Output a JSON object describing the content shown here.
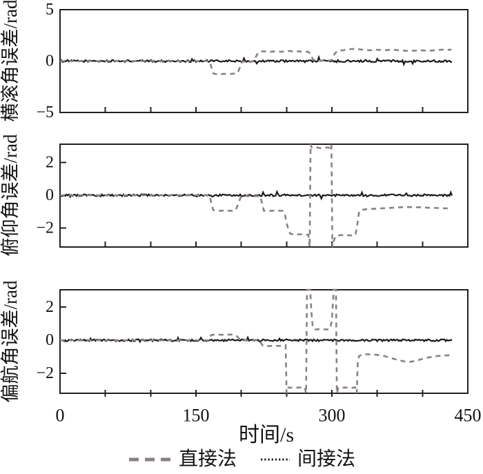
{
  "chart_data": {
    "type": "line",
    "title": "",
    "x_axis": {
      "label": "时间/s",
      "min": 0,
      "max": 450,
      "major_ticks": [
        0,
        150,
        300,
        450
      ],
      "tick_labels": [
        "0",
        "150",
        "300",
        "450"
      ],
      "minor_tick_step": 50
    },
    "legend": {
      "position": "bottom",
      "items": [
        {
          "label": "直接法",
          "line_style": "dashed",
          "color": "#8b8083"
        },
        {
          "label": "间接法",
          "line_style": "dotted",
          "color": "#2a2627"
        }
      ]
    },
    "panels": [
      {
        "name": "roll-angle-error",
        "ylabel": "横滚角误差/rad",
        "ylim": [
          -5,
          5
        ],
        "ytick_values": [
          5,
          0,
          -5
        ],
        "ytick_labels": [
          "5",
          "0",
          "−5"
        ],
        "series": {
          "direct": {
            "legend": "直接法",
            "points": [
              [
                0,
                0
              ],
              [
                165,
                0
              ],
              [
                167,
                -0.6
              ],
              [
                169,
                -1.2
              ],
              [
                174,
                -1.3
              ],
              [
                180,
                -1.25
              ],
              [
                190,
                -1.25
              ],
              [
                196,
                -1.15
              ],
              [
                199,
                -0.5
              ],
              [
                201,
                -0.05
              ],
              [
                214,
                -0.05
              ],
              [
                216,
                0.4
              ],
              [
                219,
                0.85
              ],
              [
                224,
                0.95
              ],
              [
                232,
                0.9
              ],
              [
                238,
                0.95
              ],
              [
                244,
                0.9
              ],
              [
                250,
                1.0
              ],
              [
                256,
                0.95
              ],
              [
                262,
                0.95
              ],
              [
                268,
                0.9
              ],
              [
                274,
                0.9
              ],
              [
                277,
                0.6
              ],
              [
                279,
                0.15
              ],
              [
                283,
                0.05
              ],
              [
                297,
                0.05
              ],
              [
                300,
                0.1
              ],
              [
                303,
                0.7
              ],
              [
                306,
                1.0
              ],
              [
                312,
                1.05
              ],
              [
                318,
                1.15
              ],
              [
                326,
                1.2
              ],
              [
                334,
                1.1
              ],
              [
                342,
                1.05
              ],
              [
                350,
                1.1
              ],
              [
                358,
                1.05
              ],
              [
                366,
                1.1
              ],
              [
                374,
                1.05
              ],
              [
                382,
                1.0
              ],
              [
                390,
                1.0
              ],
              [
                398,
                1.05
              ],
              [
                406,
                1.0
              ],
              [
                414,
                1.05
              ],
              [
                420,
                1.1
              ],
              [
                426,
                1.1
              ],
              [
                432,
                1.1
              ]
            ]
          },
          "indirect": {
            "legend": "间接法",
            "baseline": 0,
            "noise_amplitude": 0.1,
            "t_range": [
              0,
              433
            ]
          }
        }
      },
      {
        "name": "pitch-angle-error",
        "ylabel": "俯仰角误差/rad",
        "ylim": [
          -3.16,
          3.12
        ],
        "ytick_values": [
          2,
          0,
          -2
        ],
        "ytick_labels": [
          "2",
          "0",
          "−2"
        ],
        "series": {
          "direct": {
            "legend": "直接法",
            "points": [
              [
                0,
                0
              ],
              [
                165,
                0
              ],
              [
                167,
                -0.5
              ],
              [
                169,
                -0.9
              ],
              [
                174,
                -0.95
              ],
              [
                182,
                -0.93
              ],
              [
                190,
                -0.95
              ],
              [
                194,
                -0.9
              ],
              [
                197,
                -0.45
              ],
              [
                200,
                -0.05
              ],
              [
                221,
                -0.05
              ],
              [
                223,
                -0.5
              ],
              [
                225,
                -0.95
              ],
              [
                232,
                -0.95
              ],
              [
                240,
                -0.93
              ],
              [
                246,
                -0.95
              ],
              [
                248,
                -1.15
              ],
              [
                251,
                -1.9
              ],
              [
                254,
                -2.35
              ],
              [
                258,
                -2.4
              ],
              [
                266,
                -2.38
              ],
              [
                272,
                -2.4
              ],
              [
                274,
                -2.42
              ],
              [
                275.5,
                -3.16
              ],
              [
                276.5,
                3.12
              ],
              [
                278,
                2.9
              ],
              [
                283,
                2.92
              ],
              [
                288,
                2.88
              ],
              [
                293,
                2.92
              ],
              [
                298,
                2.9
              ],
              [
                299.5,
                3.12
              ],
              [
                300.5,
                -3.16
              ],
              [
                302,
                -2.8
              ],
              [
                304,
                -2.5
              ],
              [
                307,
                -2.45
              ],
              [
                314,
                -2.42
              ],
              [
                320,
                -2.45
              ],
              [
                326,
                -2.43
              ],
              [
                328,
                -1.8
              ],
              [
                330,
                -1.0
              ],
              [
                332,
                -0.9
              ],
              [
                338,
                -0.85
              ],
              [
                346,
                -0.83
              ],
              [
                354,
                -0.8
              ],
              [
                362,
                -0.78
              ],
              [
                370,
                -0.75
              ],
              [
                378,
                -0.73
              ],
              [
                386,
                -0.72
              ],
              [
                394,
                -0.73
              ],
              [
                402,
                -0.75
              ],
              [
                410,
                -0.77
              ],
              [
                418,
                -0.78
              ],
              [
                426,
                -0.8
              ],
              [
                432,
                -0.8
              ]
            ]
          },
          "indirect": {
            "legend": "间接法",
            "baseline": 0,
            "noise_amplitude": 0.06,
            "t_range": [
              0,
              433
            ]
          }
        }
      },
      {
        "name": "yaw-angle-error",
        "ylabel": "偏航角误差/rad",
        "ylim": [
          -3.2,
          3.05
        ],
        "ytick_values": [
          2,
          0,
          -2
        ],
        "ytick_labels": [
          "2",
          "0",
          "−2"
        ],
        "series": {
          "direct": {
            "legend": "直接法",
            "points": [
              [
                0,
                0
              ],
              [
                163,
                0
              ],
              [
                165,
                0.2
              ],
              [
                167,
                0.32
              ],
              [
                172,
                0.35
              ],
              [
                180,
                0.33
              ],
              [
                188,
                0.35
              ],
              [
                194,
                0.3
              ],
              [
                197,
                0.15
              ],
              [
                199,
                0
              ],
              [
                220,
                0
              ],
              [
                222,
                -0.2
              ],
              [
                224,
                -0.33
              ],
              [
                230,
                -0.35
              ],
              [
                238,
                -0.33
              ],
              [
                246,
                -0.35
              ],
              [
                249,
                -0.3
              ],
              [
                250,
                -3.2
              ],
              [
                252,
                -2.85
              ],
              [
                258,
                -2.88
              ],
              [
                264,
                -2.85
              ],
              [
                270,
                -2.85
              ],
              [
                271.5,
                -3.2
              ],
              [
                272.5,
                3.05
              ],
              [
                276,
                3.05
              ],
              [
                277.5,
                1.6
              ],
              [
                279,
                0.75
              ],
              [
                282,
                0.65
              ],
              [
                288,
                0.68
              ],
              [
                294,
                0.65
              ],
              [
                298,
                0.7
              ],
              [
                300,
                1.2
              ],
              [
                302,
                3.05
              ],
              [
                304.5,
                3.05
              ],
              [
                305.5,
                -3.2
              ],
              [
                307,
                -2.88
              ],
              [
                314,
                -2.85
              ],
              [
                320,
                -2.87
              ],
              [
                326,
                -2.85
              ],
              [
                327.5,
                -3.2
              ],
              [
                328.5,
                -1.4
              ],
              [
                330,
                -0.95
              ],
              [
                334,
                -0.85
              ],
              [
                340,
                -0.85
              ],
              [
                348,
                -0.87
              ],
              [
                356,
                -0.92
              ],
              [
                364,
                -1.05
              ],
              [
                372,
                -1.18
              ],
              [
                380,
                -1.28
              ],
              [
                386,
                -1.3
              ],
              [
                392,
                -1.25
              ],
              [
                400,
                -1.12
              ],
              [
                408,
                -1.02
              ],
              [
                416,
                -0.95
              ],
              [
                424,
                -0.92
              ],
              [
                430,
                -0.9
              ]
            ]
          },
          "indirect": {
            "legend": "间接法",
            "baseline": 0,
            "noise_amplitude": 0.06,
            "t_range": [
              0,
              433
            ]
          }
        }
      }
    ],
    "layout_hints": {
      "grid": "off",
      "legend_position": "bottom-center",
      "axis_color": "#231f20"
    }
  }
}
